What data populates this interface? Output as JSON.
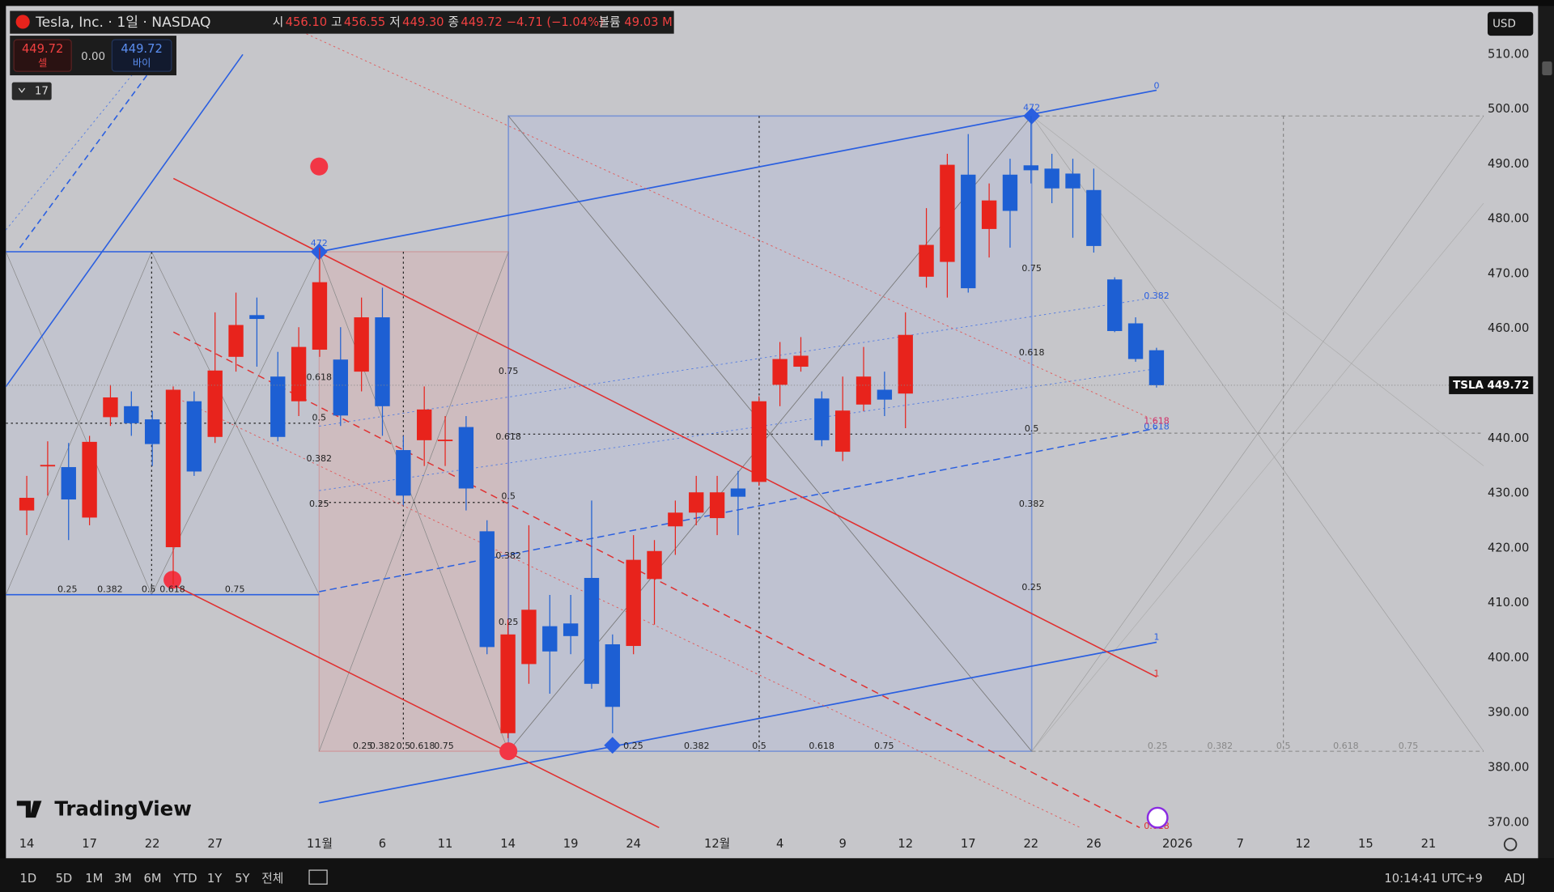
{
  "header": {
    "symbol": "Tesla, Inc. · 1일 · NASDAQ",
    "ohlc": [
      {
        "label": "시",
        "value": "456.10"
      },
      {
        "label": "고",
        "value": "456.55"
      },
      {
        "label": "저",
        "value": "449.30"
      },
      {
        "label": "종",
        "value": "449.72"
      }
    ],
    "change": "−4.71 (−1.04%)",
    "volume_label": "볼륨",
    "volume": "49.03 M"
  },
  "trade": {
    "sell_price": "449.72",
    "sell": "셀",
    "spread": "0.00",
    "buy_price": "449.72",
    "buy": "바이"
  },
  "indicators": "17",
  "currency": "USD",
  "price_label": {
    "symbol": "TSLA",
    "price": "449.72"
  },
  "logo": "TradingView",
  "toolbar": {
    "ranges": [
      "1D",
      "5D",
      "1M",
      "3M",
      "6M",
      "YTD",
      "1Y",
      "5Y",
      "전체"
    ],
    "clock": "10:14:41 UTC+9",
    "adj": "ADJ"
  },
  "drawing_labels": [
    "0.25",
    "0.382",
    "0.5",
    "0.618",
    "0.75",
    "0.618",
    "0.5",
    "0.382",
    "0.25",
    "0.75",
    "0.618",
    "0.5",
    "0.382",
    "0.25",
    "0.25",
    "0.382",
    "0.5",
    "0.618",
    "0.75",
    "0.75",
    "0.618",
    "0.5",
    "0.382",
    "0.25",
    "0.25",
    "0.382",
    "0.5",
    "0.618",
    "0.75",
    "0.25",
    "0.382",
    "0.5",
    "0.618",
    "0.75",
    "0",
    "0.382",
    "0.618",
    "1",
    "1.618",
    "1",
    "0.618",
    "472",
    "472"
  ],
  "chart_data": {
    "type": "candlestick",
    "up_color": "#e8231c",
    "down_color": "#1d5fd3",
    "categories": [
      "14",
      null,
      null,
      "17",
      null,
      null,
      "22",
      null,
      null,
      "27",
      null,
      null,
      null,
      null,
      "11월",
      null,
      null,
      "6",
      null,
      null,
      "11",
      null,
      null,
      "14",
      null,
      null,
      "19",
      null,
      null,
      "24",
      null,
      null,
      null,
      "12월",
      null,
      null,
      "4",
      null,
      null,
      "9",
      null,
      null,
      "12",
      null,
      null,
      "17",
      null,
      null,
      "22",
      null,
      null,
      "26",
      null,
      null,
      null,
      "2026",
      null,
      null,
      "7",
      null,
      null,
      "12",
      null,
      null,
      "15",
      null,
      null,
      "21"
    ],
    "open": [
      426.9,
      435.0,
      434.8,
      425.6,
      443.9,
      445.9,
      443.5,
      420.2,
      446.8,
      440.3,
      454.9,
      462.5,
      451.3,
      446.8,
      456.2,
      454.4,
      452.2,
      462.1,
      437.9,
      439.7,
      439.7,
      442.1,
      423.1,
      386.3,
      398.9,
      405.8,
      406.3,
      414.6,
      402.5,
      402.2,
      414.4,
      424.0,
      426.5,
      425.5,
      430.9,
      432.1,
      449.8,
      453.1,
      447.3,
      437.6,
      446.2,
      448.9,
      448.2,
      469.5,
      472.2,
      488.1,
      478.2,
      488.1,
      489.8,
      489.2,
      488.3,
      485.3,
      469.0,
      461.0,
      456.1,
      null,
      null,
      null,
      null,
      null,
      null,
      null,
      null,
      null,
      null,
      null,
      null,
      null
    ],
    "high": [
      433.2,
      439.5,
      439.2,
      440.5,
      449.8,
      448.6,
      445.0,
      449.5,
      448.6,
      463.0,
      466.6,
      465.7,
      455.8,
      460.3,
      474.8,
      460.3,
      465.7,
      467.5,
      440.5,
      449.5,
      444.1,
      444.1,
      425.1,
      407.0,
      424.2,
      411.5,
      411.5,
      428.7,
      404.3,
      422.4,
      421.5,
      428.7,
      433.2,
      433.2,
      434.1,
      447.7,
      457.6,
      458.5,
      448.6,
      451.3,
      456.7,
      452.2,
      463.0,
      482.0,
      491.9,
      495.5,
      486.5,
      491.0,
      498.8,
      491.9,
      491.0,
      489.2,
      469.4,
      462.1,
      456.55,
      null,
      null,
      null,
      null,
      null,
      null,
      null,
      null,
      null,
      null,
      null,
      null,
      null
    ],
    "low": [
      422.4,
      429.6,
      421.5,
      424.2,
      442.3,
      440.5,
      435.0,
      413.4,
      433.2,
      439.2,
      452.2,
      453.1,
      439.5,
      444.1,
      454.9,
      442.3,
      448.6,
      440.5,
      427.8,
      435.0,
      435.0,
      426.9,
      400.7,
      385.4,
      395.3,
      393.5,
      400.7,
      394.4,
      386.3,
      400.7,
      406.1,
      418.8,
      424.2,
      422.4,
      422.4,
      431.4,
      445.9,
      452.2,
      438.6,
      435.9,
      445.0,
      444.1,
      441.9,
      467.5,
      465.7,
      466.6,
      473.0,
      474.8,
      486.5,
      482.9,
      476.6,
      473.9,
      459.4,
      454.0,
      449.3,
      null,
      null,
      null,
      null,
      null,
      null,
      null,
      null,
      null,
      null,
      null,
      null,
      null
    ],
    "close": [
      429.2,
      435.2,
      428.9,
      439.4,
      447.5,
      442.8,
      439.0,
      448.9,
      434.0,
      452.4,
      460.7,
      461.8,
      440.3,
      456.7,
      468.5,
      444.2,
      462.1,
      445.9,
      429.6,
      445.3,
      439.8,
      430.9,
      402.0,
      404.3,
      408.8,
      401.2,
      404.0,
      395.3,
      391.1,
      417.9,
      419.5,
      426.5,
      430.2,
      430.2,
      429.4,
      446.8,
      454.5,
      455.1,
      439.7,
      445.1,
      451.3,
      447.1,
      458.9,
      475.3,
      489.9,
      467.4,
      483.4,
      481.5,
      488.9,
      485.6,
      485.6,
      475.1,
      459.6,
      454.5,
      449.72,
      null,
      null,
      null,
      null,
      null,
      null,
      null,
      null,
      null,
      null,
      null,
      null,
      null
    ],
    "ylim": [
      370,
      510
    ],
    "yticks": [
      {
        "value": 370,
        "label": "370.00"
      },
      {
        "value": 380,
        "label": "380.00"
      },
      {
        "value": 390,
        "label": "390.00"
      },
      {
        "value": 400,
        "label": "400.00"
      },
      {
        "value": 410,
        "label": "410.00"
      },
      {
        "value": 420,
        "label": "420.00"
      },
      {
        "value": 430,
        "label": "430.00"
      },
      {
        "value": 440,
        "label": "440.00"
      },
      {
        "value": 450,
        "label": "450.00"
      },
      {
        "value": 460,
        "label": "460.00"
      },
      {
        "value": 470,
        "label": "470.00"
      },
      {
        "value": 480,
        "label": "480.00"
      },
      {
        "value": 490,
        "label": "490.00"
      },
      {
        "value": 500,
        "label": "500.00"
      },
      {
        "value": 510,
        "label": "510.00"
      }
    ]
  }
}
